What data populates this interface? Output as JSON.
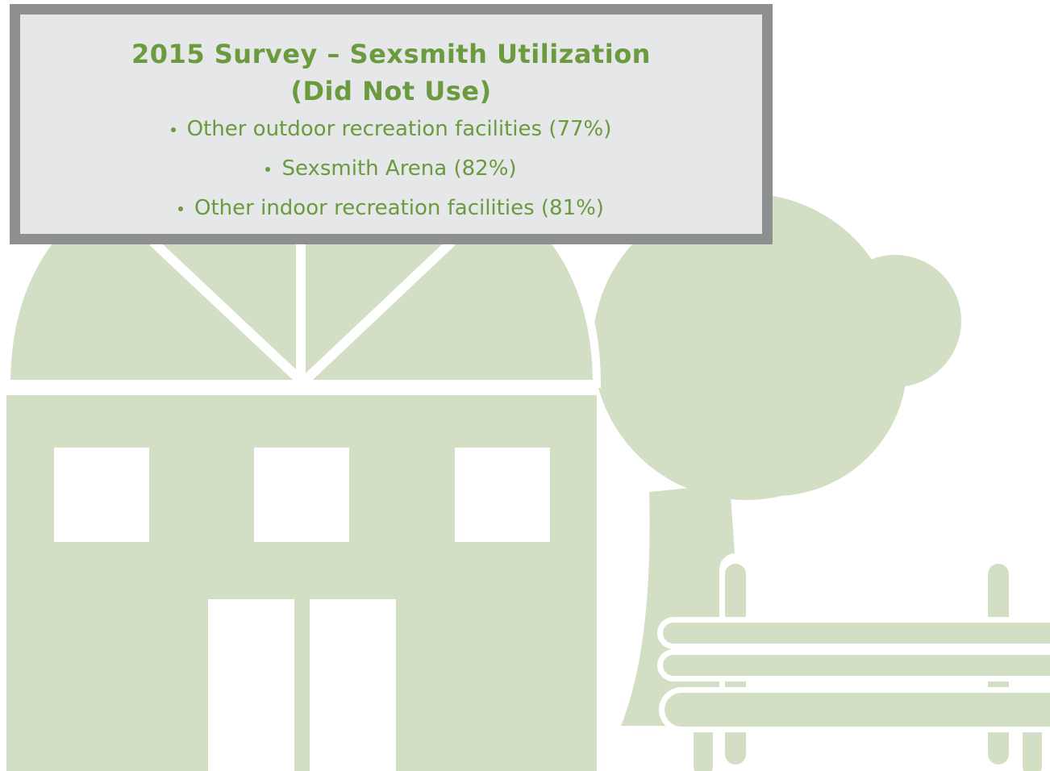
{
  "header": {
    "title_lines": [
      "2015 Survey – Sexsmith Utilization",
      "(Did Not Use)"
    ]
  },
  "items": [
    "Other outdoor recreation facilities (77%)",
    "Sexsmith Arena (82%)",
    "Other indoor recreation facilities (81%)"
  ]
}
